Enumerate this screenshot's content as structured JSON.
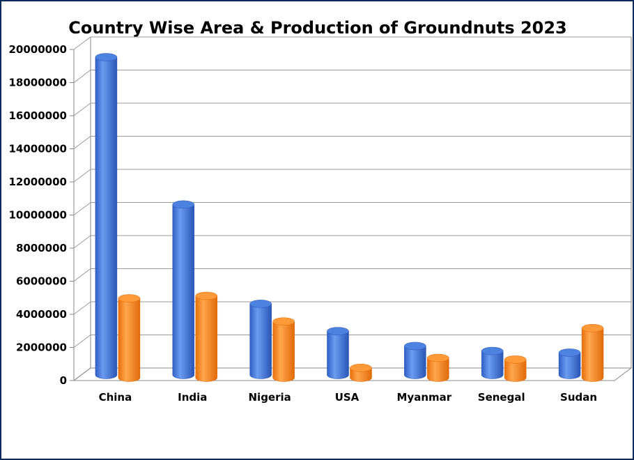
{
  "chart_data": {
    "type": "bar",
    "title": "Country Wise Area & Production of Groundnuts 2023",
    "xlabel": "",
    "ylabel": "",
    "categories": [
      "China",
      "India",
      "Nigeria",
      "USA",
      "Myanmar",
      "Senegal",
      "Sudan"
    ],
    "series": [
      {
        "values": [
          19200000,
          10300000,
          4300000,
          2650000,
          1750000,
          1450000,
          1350000
        ],
        "color": "#3a6fd8"
      },
      {
        "values": [
          4800000,
          4950000,
          3400000,
          600000,
          1200000,
          1100000,
          3000000
        ],
        "color": "#ff8a24"
      }
    ],
    "ylim": [
      0,
      20000000
    ],
    "yticks": [
      "0",
      "2000000",
      "4000000",
      "6000000",
      "8000000",
      "10000000",
      "12000000",
      "14000000",
      "16000000",
      "18000000",
      "20000000"
    ],
    "grid": true,
    "legend": "none",
    "style": "3d-cylinder"
  }
}
